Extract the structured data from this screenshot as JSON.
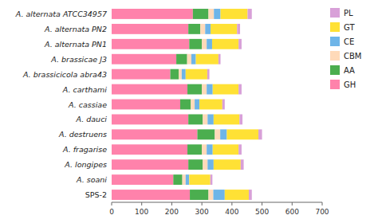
{
  "chart_data": {
    "type": "bar",
    "orientation": "horizontal",
    "stacked": true,
    "categories": [
      "A. alternata ATCC34957",
      "A. alternata PN2",
      "A. alternata PN1",
      "A. brassicae J3",
      "A. brassicicola abra43",
      "A. carthami",
      "A. cassiae",
      "A. dauci",
      "A. destruens",
      "A. fragarise",
      "A. longipes",
      "A. soani",
      "SPS-2"
    ],
    "series": [
      {
        "name": "GH",
        "color": "#FF82AB",
        "values": [
          270,
          255,
          258,
          215,
          195,
          252,
          228,
          255,
          285,
          252,
          255,
          205,
          260
        ]
      },
      {
        "name": "AA",
        "color": "#4BAE4F",
        "values": [
          52,
          40,
          42,
          36,
          28,
          48,
          35,
          48,
          58,
          48,
          48,
          30,
          62
        ]
      },
      {
        "name": "CBM",
        "color": "#FFDAB9",
        "values": [
          18,
          16,
          16,
          14,
          10,
          16,
          13,
          16,
          18,
          16,
          16,
          11,
          16
        ]
      },
      {
        "name": "CE",
        "color": "#6EB5E8",
        "values": [
          22,
          18,
          18,
          15,
          13,
          20,
          16,
          20,
          22,
          20,
          20,
          12,
          38
        ]
      },
      {
        "name": "GT",
        "color": "#FFE135",
        "values": [
          90,
          88,
          88,
          75,
          72,
          86,
          76,
          86,
          105,
          86,
          90,
          70,
          80
        ]
      },
      {
        "name": "PL",
        "color": "#D8A0D8",
        "values": [
          14,
          10,
          10,
          7,
          7,
          10,
          8,
          10,
          12,
          10,
          10,
          7,
          10
        ]
      }
    ],
    "xlim": [
      0,
      700
    ],
    "xticks": [
      0,
      100,
      200,
      300,
      400,
      500,
      600,
      700
    ],
    "legend": "right",
    "grid": false
  }
}
